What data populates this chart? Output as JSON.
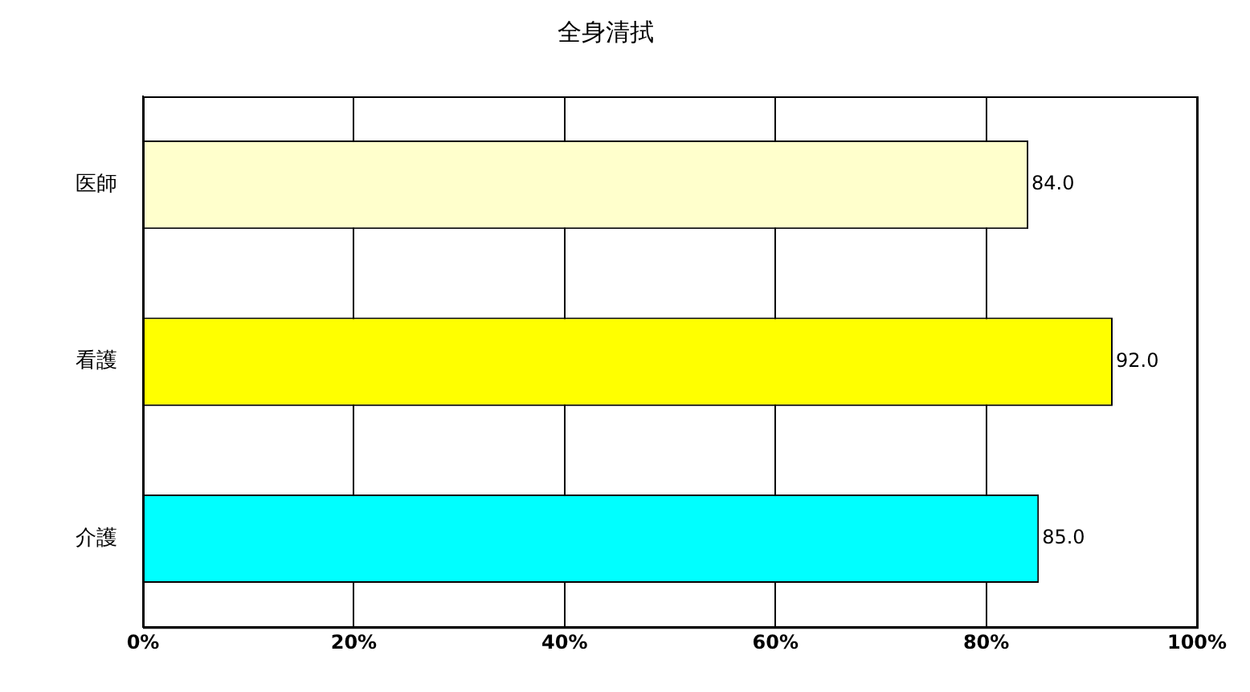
{
  "chart_data": {
    "type": "bar",
    "orientation": "horizontal",
    "title": "全身清拭",
    "categories": [
      "医師",
      "看護",
      "介護"
    ],
    "values": [
      84,
      92,
      85
    ],
    "colors": [
      "#ffffcc",
      "#ffff00",
      "#00ffff"
    ],
    "value_labels": [
      "84.0",
      "92.0",
      "85.0"
    ],
    "xlim": [
      0,
      100
    ],
    "xticks": [
      {
        "value": 0,
        "label": "0%"
      },
      {
        "value": 20,
        "label": "20%"
      },
      {
        "value": 40,
        "label": "40%"
      },
      {
        "value": 60,
        "label": "60%"
      },
      {
        "value": 80,
        "label": "80%"
      },
      {
        "value": 100,
        "label": "100%"
      }
    ],
    "grid": "x",
    "legend": false
  }
}
